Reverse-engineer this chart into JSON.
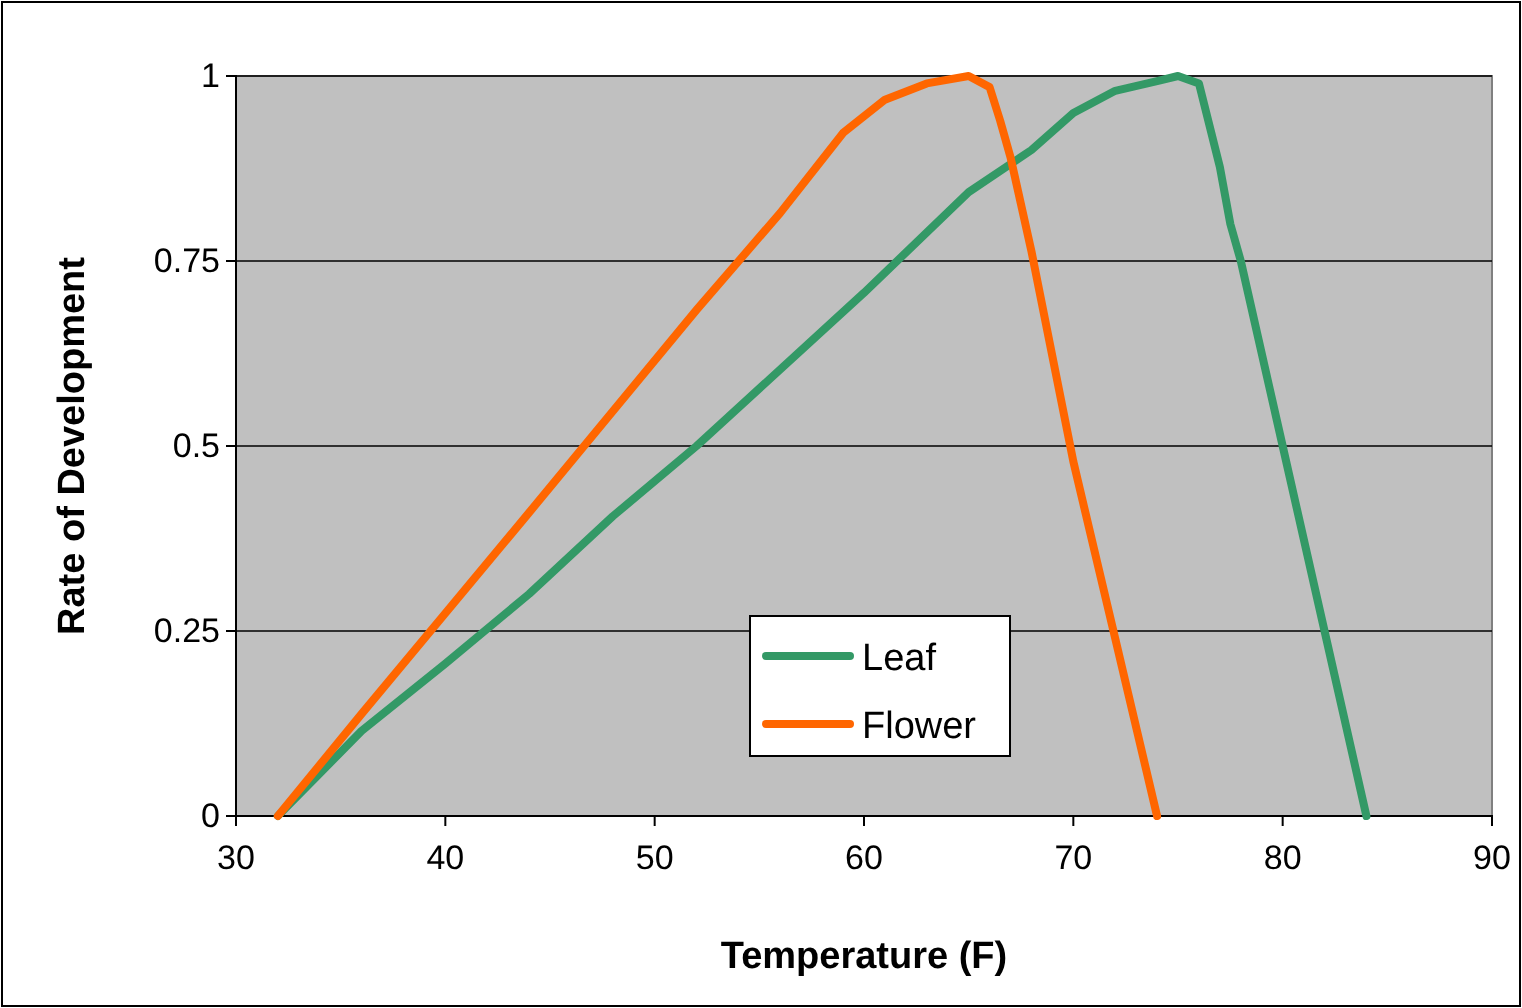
{
  "chart_data": {
    "type": "line",
    "xlabel": "Temperature (F)",
    "ylabel": "Rate of Development",
    "xlim": [
      30,
      90
    ],
    "xticks": [
      30,
      40,
      50,
      60,
      70,
      80,
      90
    ],
    "ylim": [
      0,
      1
    ],
    "yticks": [
      0,
      0.25,
      0.5,
      0.75,
      1
    ],
    "grid": "y",
    "legend": "bottom",
    "series": [
      {
        "name": "Leaf",
        "color": "#339966",
        "x": [
          32,
          36,
          40,
          44,
          48,
          52,
          60,
          65,
          68,
          70,
          72,
          74,
          75,
          76,
          77,
          77.5,
          78,
          80,
          82,
          84
        ],
        "values": [
          0,
          0.115,
          0.206,
          0.3,
          0.405,
          0.5,
          0.707,
          0.843,
          0.9,
          0.95,
          0.98,
          0.993,
          1,
          0.99,
          0.877,
          0.8,
          0.75,
          0.5,
          0.25,
          0
        ]
      },
      {
        "name": "Flower",
        "color": "#ff6600",
        "x": [
          32,
          36,
          40,
          44,
          48,
          52,
          56,
          59,
          61,
          63,
          65,
          66,
          66.5,
          67,
          68,
          70,
          72,
          74
        ],
        "values": [
          0,
          0.138,
          0.274,
          0.41,
          0.547,
          0.684,
          0.815,
          0.923,
          0.968,
          0.99,
          1,
          0.985,
          0.94,
          0.89,
          0.763,
          0.479,
          0.24,
          0
        ]
      }
    ]
  }
}
